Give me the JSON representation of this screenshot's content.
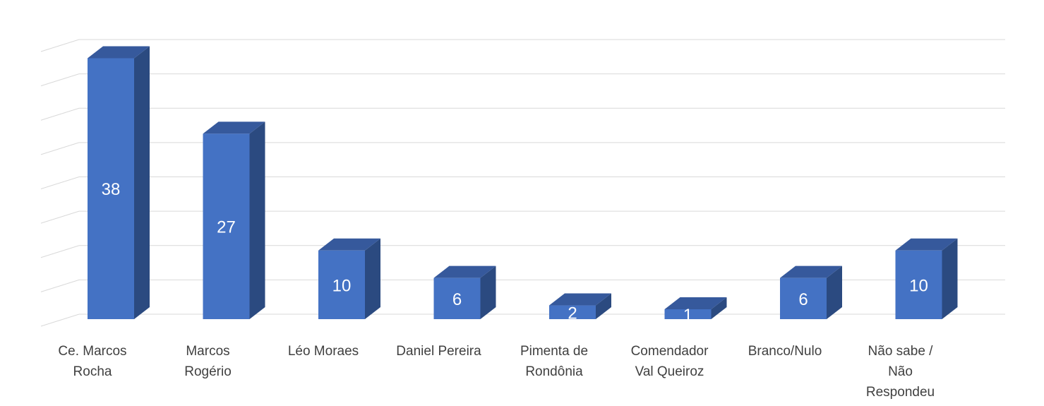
{
  "chart_data": {
    "type": "bar",
    "style": "3d-column",
    "categories": [
      [
        "Ce. Marcos",
        "Rocha"
      ],
      [
        "Marcos",
        "Rogério"
      ],
      [
        "Léo Moraes"
      ],
      [
        "Daniel Pereira"
      ],
      [
        "Pimenta de",
        "Rondônia"
      ],
      [
        "Comendador",
        "Val Queiroz"
      ],
      [
        "Branco/Nulo"
      ],
      [
        "Não sabe /",
        "Não",
        "Respondeu"
      ]
    ],
    "values": [
      38,
      27,
      10,
      6,
      2,
      1,
      6,
      10
    ],
    "value_labels": [
      "38",
      "27",
      "10",
      "6",
      "2",
      "1",
      "6",
      "10"
    ],
    "ylim": [
      0,
      40
    ],
    "y_step": 5,
    "grid": true,
    "legend": "none",
    "title": "",
    "xlabel": "",
    "ylabel": "",
    "colors": {
      "bar_front": "#4472C4",
      "bar_side": "#2B4A80",
      "bar_top": "#36599C",
      "grid": "#D9D9D9",
      "label_inside": "#FFFFFF",
      "category_text": "#404040"
    }
  }
}
